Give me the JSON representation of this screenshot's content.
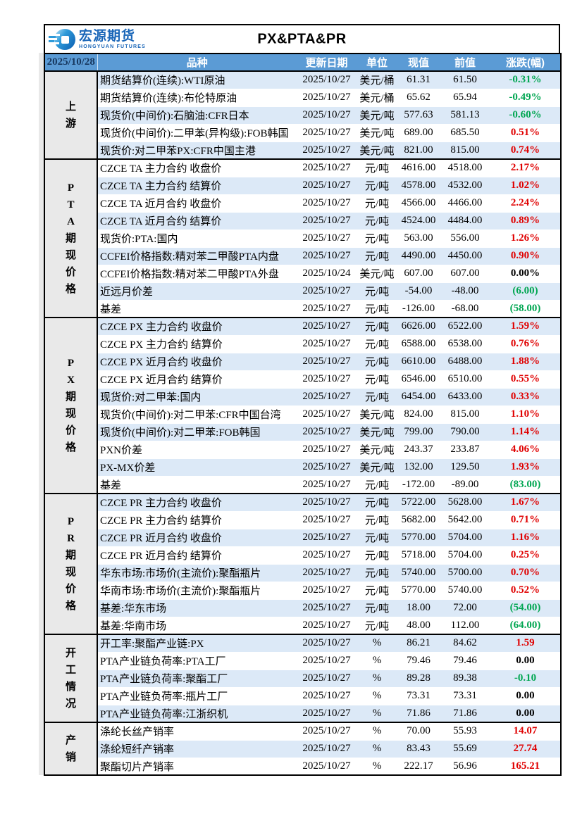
{
  "report": {
    "date": "2025/10/28",
    "title": "PX&PTA&PR",
    "logo": {
      "name_cn": "宏源期货",
      "name_en": "HONGYUAN FUTURES"
    },
    "columns": {
      "name": "品种",
      "update_date": "更新日期",
      "unit": "单位",
      "current": "现值",
      "previous": "前值",
      "change": "涨跌(幅)"
    },
    "colors": {
      "header_bg": "#5B9BD5",
      "row_alt_bg": "#DCE9F7",
      "section_label_bg": "#E9E9E9",
      "date_text": "#17375E",
      "up_red": "#E00000",
      "down_green": "#00A651",
      "logo_blue": "#1A66B8"
    },
    "sections": [
      {
        "label": "上游",
        "rows": [
          {
            "name": "期货结算价(连续):WTI原油",
            "date": "2025/10/27",
            "unit": "美元/桶",
            "current": "61.31",
            "previous": "61.50",
            "change": "-0.31%",
            "trend": "down"
          },
          {
            "name": "期货结算价(连续):布伦特原油",
            "date": "2025/10/27",
            "unit": "美元/桶",
            "current": "65.62",
            "previous": "65.94",
            "change": "-0.49%",
            "trend": "down"
          },
          {
            "name": "现货价(中间价):石脑油:CFR日本",
            "date": "2025/10/27",
            "unit": "美元/吨",
            "current": "577.63",
            "previous": "581.13",
            "change": "-0.60%",
            "trend": "down"
          },
          {
            "name": "现货价(中间价):二甲苯(异构级):FOB韩国",
            "date": "2025/10/27",
            "unit": "美元/吨",
            "current": "689.00",
            "previous": "685.50",
            "change": "0.51%",
            "trend": "up"
          },
          {
            "name": "现货价:对二甲苯PX:CFR中国主港",
            "date": "2025/10/27",
            "unit": "美元/吨",
            "current": "821.00",
            "previous": "815.00",
            "change": "0.74%",
            "trend": "up"
          }
        ]
      },
      {
        "label": "PTA期现价格",
        "rows": [
          {
            "name": "CZCE TA 主力合约 收盘价",
            "date": "2025/10/27",
            "unit": "元/吨",
            "current": "4616.00",
            "previous": "4518.00",
            "change": "2.17%",
            "trend": "up"
          },
          {
            "name": "CZCE TA 主力合约 结算价",
            "date": "2025/10/27",
            "unit": "元/吨",
            "current": "4578.00",
            "previous": "4532.00",
            "change": "1.02%",
            "trend": "up"
          },
          {
            "name": "CZCE TA 近月合约 收盘价",
            "date": "2025/10/27",
            "unit": "元/吨",
            "current": "4566.00",
            "previous": "4466.00",
            "change": "2.24%",
            "trend": "up"
          },
          {
            "name": "CZCE TA 近月合约 结算价",
            "date": "2025/10/27",
            "unit": "元/吨",
            "current": "4524.00",
            "previous": "4484.00",
            "change": "0.89%",
            "trend": "up"
          },
          {
            "name": "现货价:PTA:国内",
            "date": "2025/10/27",
            "unit": "元/吨",
            "current": "563.00",
            "previous": "556.00",
            "change": "1.26%",
            "trend": "up"
          },
          {
            "name": "CCFEI价格指数:精对苯二甲酸PTA内盘",
            "date": "2025/10/27",
            "unit": "元/吨",
            "current": "4490.00",
            "previous": "4450.00",
            "change": "0.90%",
            "trend": "up"
          },
          {
            "name": "CCFEI价格指数:精对苯二甲酸PTA外盘",
            "date": "2025/10/24",
            "unit": "美元/吨",
            "current": "607.00",
            "previous": "607.00",
            "change": "0.00%",
            "trend": "flat"
          },
          {
            "name": "近远月价差",
            "date": "2025/10/27",
            "unit": "元/吨",
            "current": "-54.00",
            "previous": "-48.00",
            "change": "(6.00)",
            "trend": "down"
          },
          {
            "name": "基差",
            "date": "2025/10/27",
            "unit": "元/吨",
            "current": "-126.00",
            "previous": "-68.00",
            "change": "(58.00)",
            "trend": "down"
          }
        ]
      },
      {
        "label": "PX期现价格",
        "rows": [
          {
            "name": "CZCE PX 主力合约 收盘价",
            "date": "2025/10/27",
            "unit": "元/吨",
            "current": "6626.00",
            "previous": "6522.00",
            "change": "1.59%",
            "trend": "up"
          },
          {
            "name": "CZCE PX 主力合约 结算价",
            "date": "2025/10/27",
            "unit": "元/吨",
            "current": "6588.00",
            "previous": "6538.00",
            "change": "0.76%",
            "trend": "up"
          },
          {
            "name": "CZCE PX 近月合约 收盘价",
            "date": "2025/10/27",
            "unit": "元/吨",
            "current": "6610.00",
            "previous": "6488.00",
            "change": "1.88%",
            "trend": "up"
          },
          {
            "name": "CZCE PX 近月合约 结算价",
            "date": "2025/10/27",
            "unit": "元/吨",
            "current": "6546.00",
            "previous": "6510.00",
            "change": "0.55%",
            "trend": "up"
          },
          {
            "name": "现货价:对二甲苯:国内",
            "date": "2025/10/27",
            "unit": "元/吨",
            "current": "6454.00",
            "previous": "6433.00",
            "change": "0.33%",
            "trend": "up"
          },
          {
            "name": "现货价(中间价):对二甲苯:CFR中国台湾",
            "date": "2025/10/27",
            "unit": "美元/吨",
            "current": "824.00",
            "previous": "815.00",
            "change": "1.10%",
            "trend": "up"
          },
          {
            "name": "现货价(中间价):对二甲苯:FOB韩国",
            "date": "2025/10/27",
            "unit": "美元/吨",
            "current": "799.00",
            "previous": "790.00",
            "change": "1.14%",
            "trend": "up"
          },
          {
            "name": "PXN价差",
            "date": "2025/10/27",
            "unit": "美元/吨",
            "current": "243.37",
            "previous": "233.87",
            "change": "4.06%",
            "trend": "up"
          },
          {
            "name": "PX-MX价差",
            "date": "2025/10/27",
            "unit": "美元/吨",
            "current": "132.00",
            "previous": "129.50",
            "change": "1.93%",
            "trend": "up"
          },
          {
            "name": "基差",
            "date": "2025/10/27",
            "unit": "元/吨",
            "current": "-172.00",
            "previous": "-89.00",
            "change": "(83.00)",
            "trend": "down"
          }
        ]
      },
      {
        "label": "PR期现价格",
        "rows": [
          {
            "name": "CZCE PR 主力合约 收盘价",
            "date": "2025/10/27",
            "unit": "元/吨",
            "current": "5722.00",
            "previous": "5628.00",
            "change": "1.67%",
            "trend": "up"
          },
          {
            "name": "CZCE PR 主力合约 结算价",
            "date": "2025/10/27",
            "unit": "元/吨",
            "current": "5682.00",
            "previous": "5642.00",
            "change": "0.71%",
            "trend": "up"
          },
          {
            "name": "CZCE PR 近月合约 收盘价",
            "date": "2025/10/27",
            "unit": "元/吨",
            "current": "5770.00",
            "previous": "5704.00",
            "change": "1.16%",
            "trend": "up"
          },
          {
            "name": "CZCE PR 近月合约 结算价",
            "date": "2025/10/27",
            "unit": "元/吨",
            "current": "5718.00",
            "previous": "5704.00",
            "change": "0.25%",
            "trend": "up"
          },
          {
            "name": "华东市场:市场价(主流价):聚酯瓶片",
            "date": "2025/10/27",
            "unit": "元/吨",
            "current": "5740.00",
            "previous": "5700.00",
            "change": "0.70%",
            "trend": "up"
          },
          {
            "name": "华南市场:市场价(主流价):聚酯瓶片",
            "date": "2025/10/27",
            "unit": "元/吨",
            "current": "5770.00",
            "previous": "5740.00",
            "change": "0.52%",
            "trend": "up"
          },
          {
            "name": "基差:华东市场",
            "date": "2025/10/27",
            "unit": "元/吨",
            "current": "18.00",
            "previous": "72.00",
            "change": "(54.00)",
            "trend": "down"
          },
          {
            "name": "基差:华南市场",
            "date": "2025/10/27",
            "unit": "元/吨",
            "current": "48.00",
            "previous": "112.00",
            "change": "(64.00)",
            "trend": "down"
          }
        ]
      },
      {
        "label": "开工情况",
        "rows": [
          {
            "name": "开工率:聚酯产业链:PX",
            "date": "2025/10/27",
            "unit": "%",
            "current": "86.21",
            "previous": "84.62",
            "change": "1.59",
            "trend": "up"
          },
          {
            "name": "PTA产业链负荷率:PTA工厂",
            "date": "2025/10/27",
            "unit": "%",
            "current": "79.46",
            "previous": "79.46",
            "change": "0.00",
            "trend": "flat"
          },
          {
            "name": "PTA产业链负荷率:聚酯工厂",
            "date": "2025/10/27",
            "unit": "%",
            "current": "89.28",
            "previous": "89.38",
            "change": "-0.10",
            "trend": "down"
          },
          {
            "name": "PTA产业链负荷率:瓶片工厂",
            "date": "2025/10/27",
            "unit": "%",
            "current": "73.31",
            "previous": "73.31",
            "change": "0.00",
            "trend": "flat"
          },
          {
            "name": "PTA产业链负荷率:江浙织机",
            "date": "2025/10/27",
            "unit": "%",
            "current": "71.86",
            "previous": "71.86",
            "change": "0.00",
            "trend": "flat"
          }
        ]
      },
      {
        "label": "产销",
        "rows": [
          {
            "name": "涤纶长丝产销率",
            "date": "2025/10/27",
            "unit": "%",
            "current": "70.00",
            "previous": "55.93",
            "change": "14.07",
            "trend": "up"
          },
          {
            "name": "涤纶短纤产销率",
            "date": "2025/10/27",
            "unit": "%",
            "current": "83.43",
            "previous": "55.69",
            "change": "27.74",
            "trend": "up"
          },
          {
            "name": "聚酯切片产销率",
            "date": "2025/10/27",
            "unit": "%",
            "current": "222.17",
            "previous": "56.96",
            "change": "165.21",
            "trend": "up"
          }
        ]
      }
    ]
  }
}
